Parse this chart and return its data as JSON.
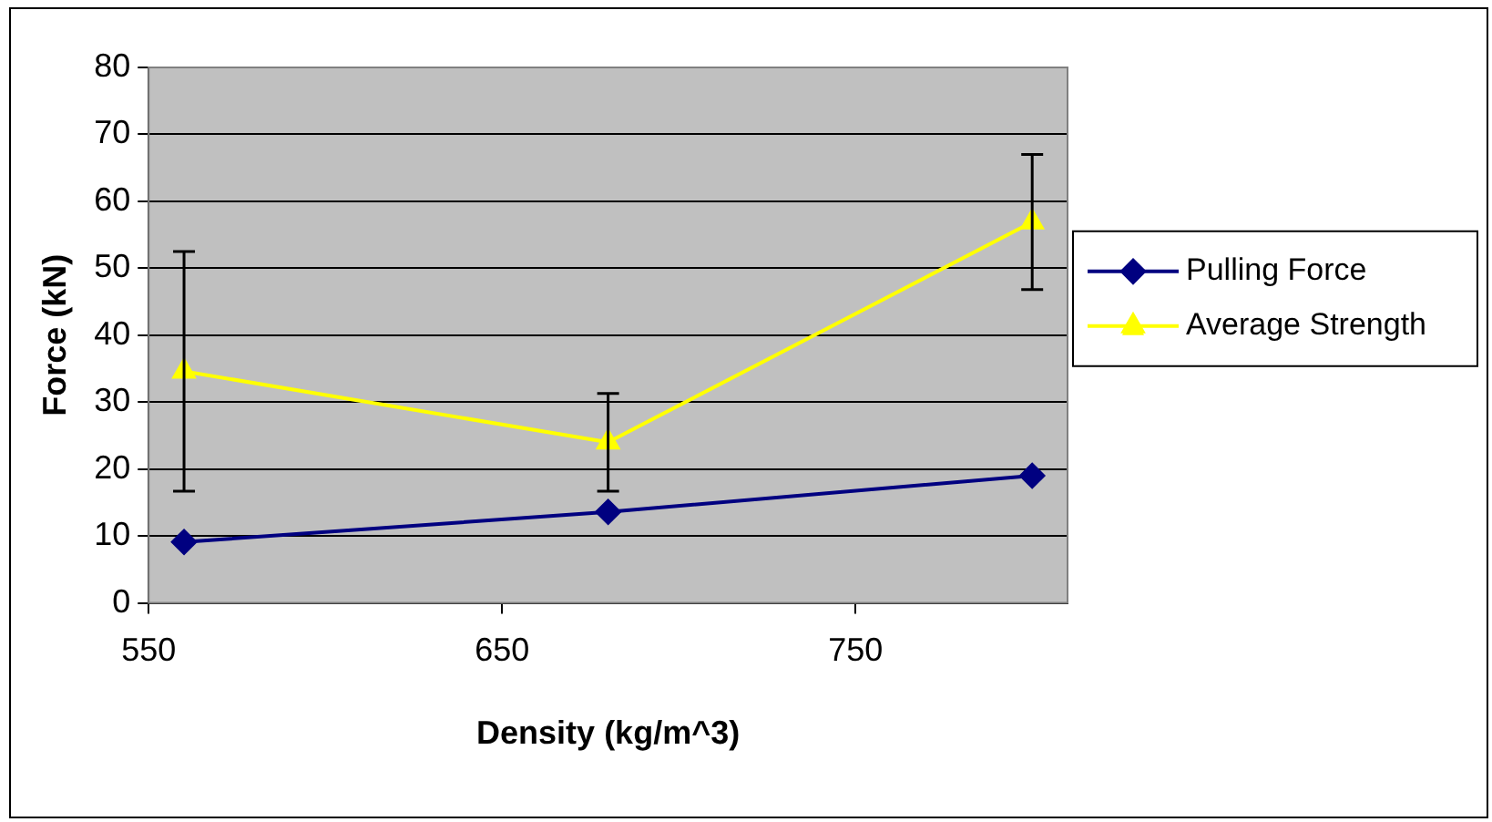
{
  "chart_data": {
    "type": "line",
    "xlabel": "Density (kg/m^3)",
    "ylabel": "Force (kN)",
    "x": [
      560,
      680,
      800
    ],
    "series": [
      {
        "name": "Pulling Force",
        "color": "#000080",
        "marker": "diamond",
        "values": [
          9.1,
          13.6,
          19.0
        ]
      },
      {
        "name": "Average Strength",
        "color": "#ffff00",
        "marker": "triangle",
        "values": [
          34.6,
          24.0,
          56.9
        ],
        "errors": [
          17.9,
          7.3,
          10.1
        ]
      }
    ],
    "xlim": [
      550,
      810
    ],
    "xticks": [
      550,
      650,
      750
    ],
    "ylim": [
      0,
      80
    ],
    "yticks": [
      0,
      10,
      20,
      30,
      40,
      50,
      60,
      70,
      80
    ],
    "grid": "y",
    "legend": "right",
    "line_style": "solid"
  }
}
